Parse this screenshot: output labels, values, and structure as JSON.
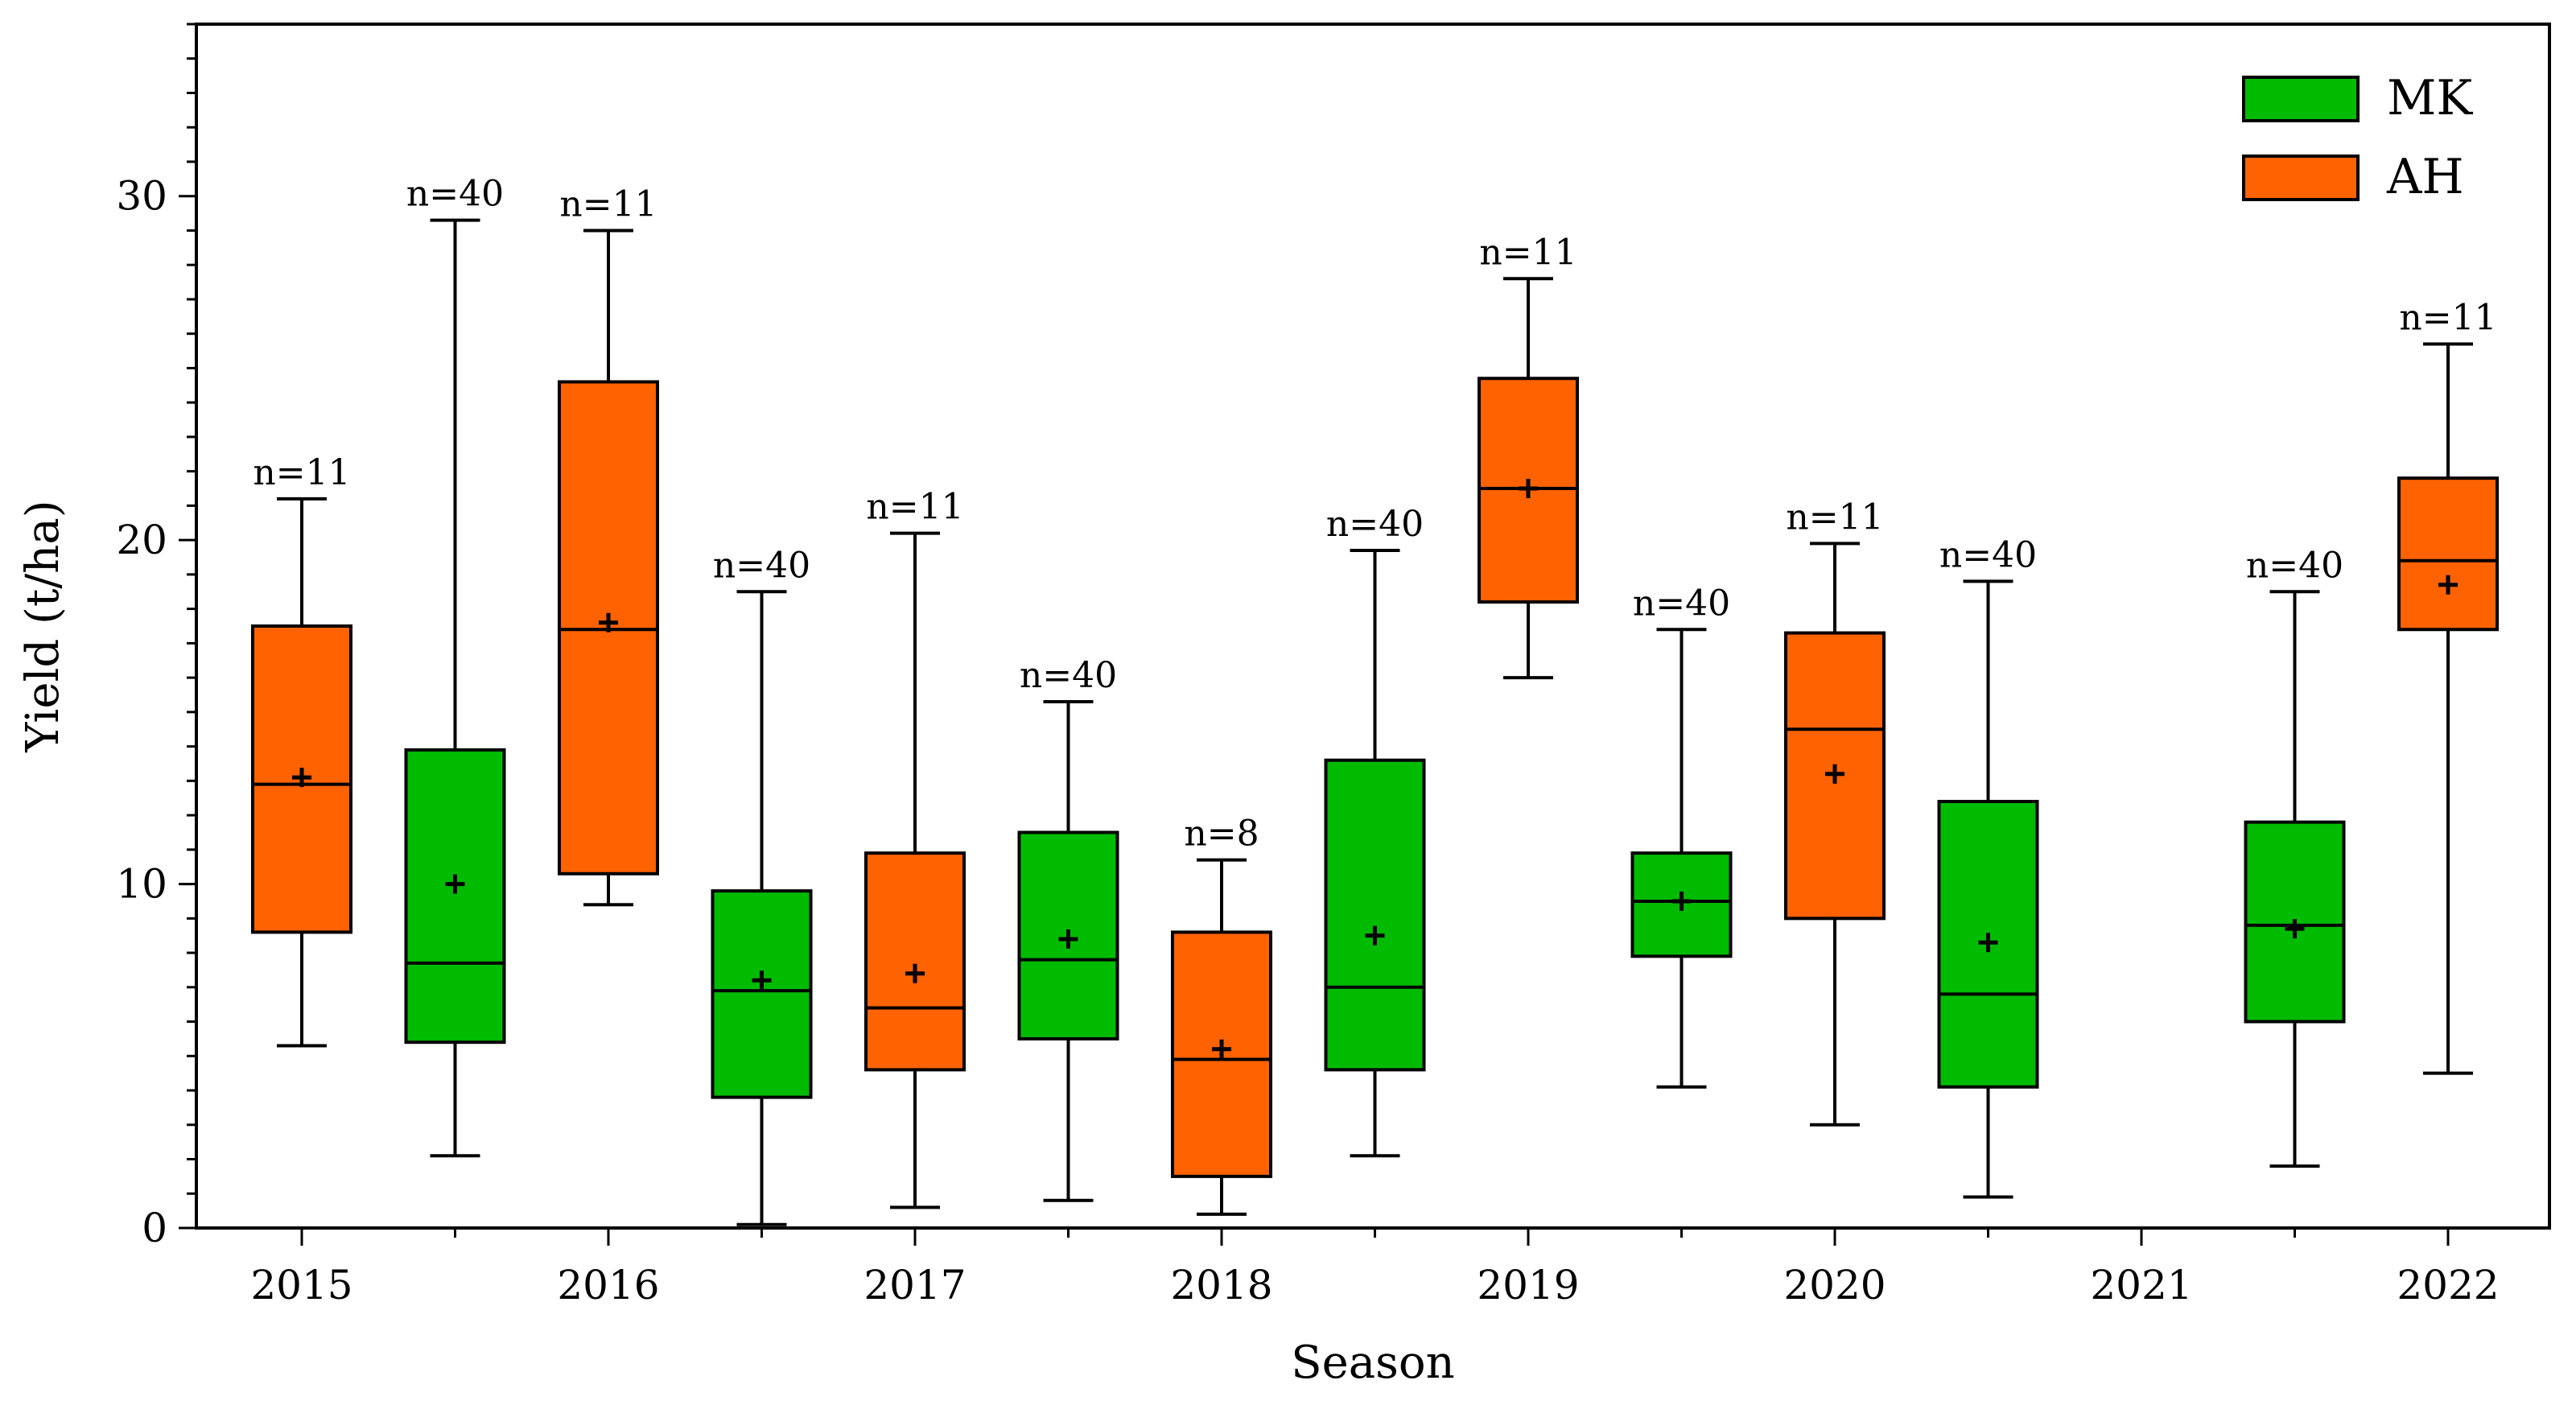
{
  "chart_data": {
    "type": "boxplot",
    "xlabel": "Season",
    "ylabel": "Yield (t/ha)",
    "ylim": [
      0,
      35
    ],
    "yticks": [
      0,
      10,
      20,
      30
    ],
    "seasons": [
      "2015",
      "2016",
      "2017",
      "2018",
      "2019",
      "2020",
      "2021",
      "2022"
    ],
    "legend": [
      {
        "name": "MK",
        "color": "#00bb00"
      },
      {
        "name": "AH",
        "color": "#ff6200"
      }
    ],
    "boxes": [
      {
        "series": "AH",
        "season": "2015",
        "slot": 0,
        "min": 5.3,
        "q1": 8.6,
        "median": 12.9,
        "q3": 17.5,
        "max": 21.2,
        "mean": 13.1,
        "n_label": "n=11"
      },
      {
        "series": "MK",
        "season": "2015",
        "slot": 0.5,
        "min": 2.1,
        "q1": 5.4,
        "median": 7.7,
        "q3": 13.9,
        "max": 29.3,
        "mean": 10.0,
        "n_label": "n=40"
      },
      {
        "series": "AH",
        "season": "2016",
        "slot": 1,
        "min": 9.4,
        "q1": 10.3,
        "median": 17.4,
        "q3": 24.6,
        "max": 29.0,
        "mean": 17.6,
        "n_label": "n=11"
      },
      {
        "series": "MK",
        "season": "2016",
        "slot": 1.5,
        "min": 0.1,
        "q1": 3.8,
        "median": 6.9,
        "q3": 9.8,
        "max": 18.5,
        "mean": 7.2,
        "n_label": "n=40"
      },
      {
        "series": "AH",
        "season": "2017",
        "slot": 2,
        "min": 0.6,
        "q1": 4.6,
        "median": 6.4,
        "q3": 10.9,
        "max": 20.2,
        "mean": 7.4,
        "n_label": "n=11"
      },
      {
        "series": "MK",
        "season": "2017",
        "slot": 2.5,
        "min": 0.8,
        "q1": 5.5,
        "median": 7.8,
        "q3": 11.5,
        "max": 15.3,
        "mean": 8.4,
        "n_label": "n=40"
      },
      {
        "series": "AH",
        "season": "2018",
        "slot": 3,
        "min": 0.4,
        "q1": 1.5,
        "median": 4.9,
        "q3": 8.6,
        "max": 10.7,
        "mean": 5.2,
        "n_label": "n=8"
      },
      {
        "series": "MK",
        "season": "2018",
        "slot": 3.5,
        "min": 2.1,
        "q1": 4.6,
        "median": 7.0,
        "q3": 13.6,
        "max": 19.7,
        "mean": 8.5,
        "n_label": "n=40"
      },
      {
        "series": "AH",
        "season": "2019",
        "slot": 4,
        "min": 16.0,
        "q1": 18.2,
        "median": 21.5,
        "q3": 24.7,
        "max": 27.6,
        "mean": 21.5,
        "n_label": "n=11"
      },
      {
        "series": "MK",
        "season": "2019",
        "slot": 4.5,
        "min": 4.1,
        "q1": 7.9,
        "median": 9.5,
        "q3": 10.9,
        "max": 17.4,
        "mean": 9.5,
        "n_label": "n=40"
      },
      {
        "series": "AH",
        "season": "2020",
        "slot": 5,
        "min": 3.0,
        "q1": 9.0,
        "median": 14.5,
        "q3": 17.3,
        "max": 19.9,
        "mean": 13.2,
        "n_label": "n=11"
      },
      {
        "series": "MK",
        "season": "2020",
        "slot": 5.5,
        "min": 0.9,
        "q1": 4.1,
        "median": 6.8,
        "q3": 12.4,
        "max": 18.8,
        "mean": 8.3,
        "n_label": "n=40"
      },
      {
        "series": "MK",
        "season": "2021",
        "slot": 6.5,
        "min": 1.8,
        "q1": 6.0,
        "median": 8.8,
        "q3": 11.8,
        "max": 18.5,
        "mean": 8.7,
        "n_label": "n=40"
      },
      {
        "series": "AH",
        "season": "2022",
        "slot": 7,
        "min": 4.5,
        "q1": 17.4,
        "median": 19.4,
        "q3": 21.8,
        "max": 25.7,
        "mean": 18.7,
        "n_label": "n=11"
      }
    ]
  }
}
